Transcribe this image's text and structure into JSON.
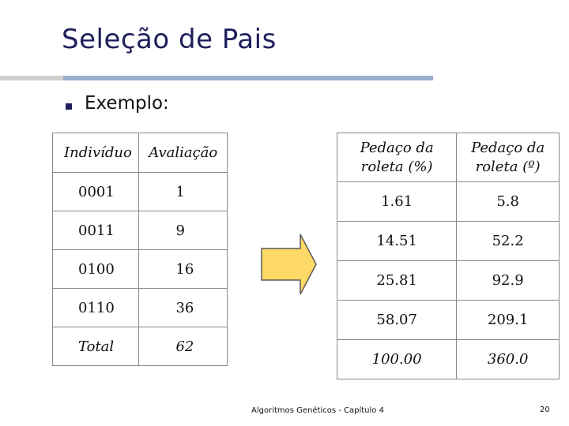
{
  "slide": {
    "title": "Seleção de Pais",
    "bullet": "Exemplo:",
    "footer": "Algoritmos Genéticos - Capítulo 4",
    "page_number": "20"
  },
  "left_table": {
    "headers": [
      "Indivíduo",
      "Avaliação"
    ],
    "rows": [
      [
        "0001",
        "1"
      ],
      [
        "0011",
        "9"
      ],
      [
        "0100",
        "16"
      ],
      [
        "0110",
        "36"
      ],
      [
        "Total",
        "62"
      ]
    ]
  },
  "right_table": {
    "headers": [
      [
        "Pedaço da",
        "roleta (%)"
      ],
      [
        "Pedaço da",
        "roleta (º)"
      ]
    ],
    "rows": [
      [
        "1.61",
        "5.8"
      ],
      [
        "14.51",
        "52.2"
      ],
      [
        "25.81",
        "92.9"
      ],
      [
        "58.07",
        "209.1"
      ],
      [
        "100.00",
        "360.0"
      ]
    ]
  },
  "colors": {
    "title": "#1f1f5c",
    "title_rule": "#9aafcf",
    "arrow_fill": "#ffd966",
    "arrow_stroke": "#5a5a5a"
  },
  "icons": {
    "arrow": "right-arrow-icon",
    "bullet": "square-bullet-icon"
  }
}
